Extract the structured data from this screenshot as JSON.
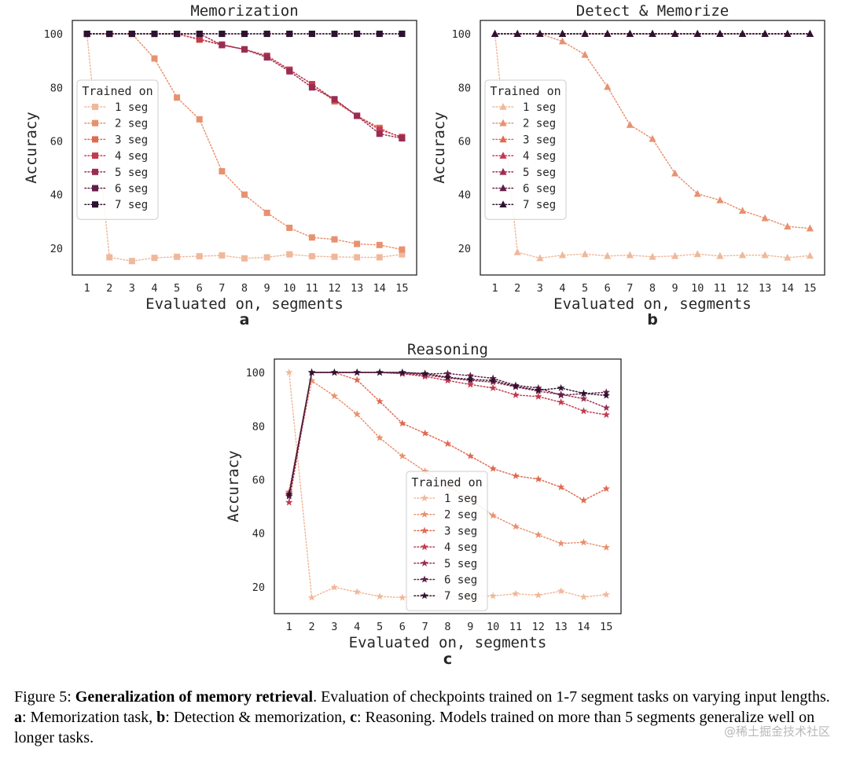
{
  "chart_data": [
    {
      "type": "line",
      "panel": "a",
      "title": "Memorization",
      "xlabel": "Evaluated on, segments",
      "ylabel": "Accuracy",
      "ylim": [
        10,
        105
      ],
      "yticks": [
        20,
        40,
        60,
        80,
        100
      ],
      "x": [
        1,
        2,
        3,
        4,
        5,
        6,
        7,
        8,
        9,
        10,
        11,
        12,
        13,
        14,
        15
      ],
      "marker": "square",
      "legend": {
        "title": "Trained on",
        "placement": "center-left"
      },
      "series": [
        {
          "name": "1 seg",
          "color": "#f0b89a",
          "values": [
            100,
            16.6,
            15.2,
            16.4,
            16.8,
            17.0,
            17.3,
            16.2,
            16.6,
            17.7,
            17.0,
            16.8,
            16.6,
            16.6,
            17.7
          ]
        },
        {
          "name": "2 seg",
          "color": "#e8916f",
          "values": [
            100,
            100,
            100,
            90.8,
            76.2,
            68.1,
            48.7,
            40.0,
            33.2,
            27.6,
            24.0,
            23.3,
            21.6,
            21.2,
            19.5
          ]
        },
        {
          "name": "3 seg",
          "color": "#df6a52",
          "values": [
            100,
            100,
            100,
            100,
            100,
            97.8,
            95.8,
            94.2,
            91.8,
            86.6,
            81.2,
            74.8,
            69.4,
            64.9,
            61.0
          ]
        },
        {
          "name": "4 seg",
          "color": "#c23b4f",
          "values": [
            100,
            100,
            100,
            100,
            100,
            98.0,
            96.0,
            94.2,
            91.8,
            86.6,
            81.2,
            75.4,
            69.4,
            64.2,
            61.5
          ]
        },
        {
          "name": "5 seg",
          "color": "#992d54",
          "values": [
            100,
            100,
            100,
            100,
            100,
            100,
            95.8,
            94.2,
            91.2,
            86.0,
            80.0,
            75.6,
            69.4,
            62.7,
            61.0
          ]
        },
        {
          "name": "6 seg",
          "color": "#621e48",
          "values": [
            100,
            100,
            100,
            100,
            100,
            100,
            100,
            100,
            100,
            100,
            100,
            100,
            100,
            100,
            100
          ]
        },
        {
          "name": "7 seg",
          "color": "#2d1330",
          "values": [
            100,
            100,
            100,
            100,
            100,
            100,
            100,
            100,
            100,
            100,
            100,
            100,
            100,
            100,
            100
          ]
        }
      ]
    },
    {
      "type": "line",
      "panel": "b",
      "title": "Detect & Memorize",
      "xlabel": "Evaluated on, segments",
      "ylabel": "Accuracy",
      "ylim": [
        10,
        105
      ],
      "yticks": [
        20,
        40,
        60,
        80,
        100
      ],
      "x": [
        1,
        2,
        3,
        4,
        5,
        6,
        7,
        8,
        9,
        10,
        11,
        12,
        13,
        14,
        15
      ],
      "marker": "triangle",
      "legend": {
        "title": "Trained on",
        "placement": "center-left"
      },
      "series": [
        {
          "name": "1 seg",
          "color": "#f0b89a",
          "values": [
            100,
            18.5,
            16.3,
            17.4,
            17.8,
            17.1,
            17.4,
            16.8,
            17.1,
            17.8,
            17.1,
            17.4,
            17.4,
            16.5,
            17.2
          ]
        },
        {
          "name": "2 seg",
          "color": "#e8916f",
          "values": [
            100,
            100,
            100,
            97.2,
            92.2,
            80.2,
            66.0,
            60.8,
            47.9,
            40.3,
            37.9,
            34.0,
            31.2,
            28.1,
            27.4
          ]
        },
        {
          "name": "3 seg",
          "color": "#df6a52",
          "values": [
            100,
            100,
            100,
            100,
            100,
            100,
            100,
            100,
            100,
            100,
            100,
            100,
            100,
            100,
            100
          ]
        },
        {
          "name": "4 seg",
          "color": "#c23b4f",
          "values": [
            100,
            100,
            100,
            100,
            100,
            100,
            100,
            100,
            100,
            100,
            100,
            100,
            100,
            100,
            100
          ]
        },
        {
          "name": "5 seg",
          "color": "#992d54",
          "values": [
            100,
            100,
            100,
            100,
            100,
            100,
            100,
            100,
            100,
            100,
            100,
            100,
            100,
            100,
            100
          ]
        },
        {
          "name": "6 seg",
          "color": "#621e48",
          "values": [
            100,
            100,
            100,
            100,
            100,
            100,
            100,
            100,
            100,
            100,
            100,
            100,
            100,
            100,
            100
          ]
        },
        {
          "name": "7 seg",
          "color": "#2d1330",
          "values": [
            100,
            100,
            100,
            100,
            100,
            100,
            100,
            100,
            100,
            100,
            100,
            100,
            100,
            100,
            100
          ]
        }
      ]
    },
    {
      "type": "line",
      "panel": "c",
      "title": "Reasoning",
      "xlabel": "Evaluated on, segments",
      "ylabel": "Accuracy",
      "ylim": [
        10,
        105
      ],
      "yticks": [
        20,
        40,
        60,
        80,
        100
      ],
      "x": [
        1,
        2,
        3,
        4,
        5,
        6,
        7,
        8,
        9,
        10,
        11,
        12,
        13,
        14,
        15
      ],
      "marker": "star",
      "legend": {
        "title": "Trained on",
        "placement": "lower-center"
      },
      "series": [
        {
          "name": "1 seg",
          "color": "#f0b89a",
          "values": [
            100,
            16.0,
            19.8,
            18.1,
            16.4,
            16.0,
            16.6,
            16.2,
            16.4,
            16.6,
            17.4,
            16.9,
            18.4,
            16.2,
            17.1
          ]
        },
        {
          "name": "2 seg",
          "color": "#e8916f",
          "values": [
            55.2,
            96.9,
            91.2,
            84.4,
            75.6,
            68.8,
            63.1,
            57.5,
            52.5,
            46.6,
            42.5,
            39.4,
            36.2,
            36.6,
            34.7
          ]
        },
        {
          "name": "3 seg",
          "color": "#df6a52",
          "values": [
            55.4,
            100,
            100,
            97.2,
            89.2,
            81.0,
            77.3,
            73.4,
            68.8,
            64.1,
            61.4,
            60.2,
            57.2,
            52.3,
            56.6
          ]
        },
        {
          "name": "4 seg",
          "color": "#c23b4f",
          "values": [
            51.5,
            100,
            100,
            100,
            100,
            99.5,
            98.5,
            97.0,
            95.5,
            94.2,
            91.6,
            91.0,
            88.9,
            85.6,
            84.2
          ]
        },
        {
          "name": "5 seg",
          "color": "#992d54",
          "values": [
            54.2,
            100,
            100,
            100,
            100,
            99.7,
            99.0,
            98.0,
            97.0,
            96.4,
            94.6,
            93.0,
            91.8,
            90.2,
            86.8
          ]
        },
        {
          "name": "6 seg",
          "color": "#621e48",
          "values": [
            53.8,
            100,
            100,
            100,
            100,
            100,
            99.5,
            99.6,
            98.8,
            97.8,
            95.2,
            94.2,
            91.5,
            92.1,
            92.6
          ]
        },
        {
          "name": "7 seg",
          "color": "#2d1330",
          "values": [
            54.6,
            100,
            100,
            100,
            100,
            100,
            99.6,
            98.2,
            97.4,
            97.0,
            94.8,
            93.4,
            94.2,
            92.2,
            91.4
          ]
        }
      ]
    }
  ],
  "caption": {
    "prefix": "Figure 5: ",
    "bold": "Generalization of memory retrieval",
    "t1": ". Evaluation of checkpoints trained on 1-7 segment tasks on varying input lengths. ",
    "a": "a",
    "t2": ": Memorization task, ",
    "b": "b",
    "t3": ": Detection & memorization, ",
    "c": "c",
    "t4": ": Reasoning. Models trained on more than 5 segments generalize well on longer tasks."
  },
  "watermark": "@稀土掘金技术社区"
}
